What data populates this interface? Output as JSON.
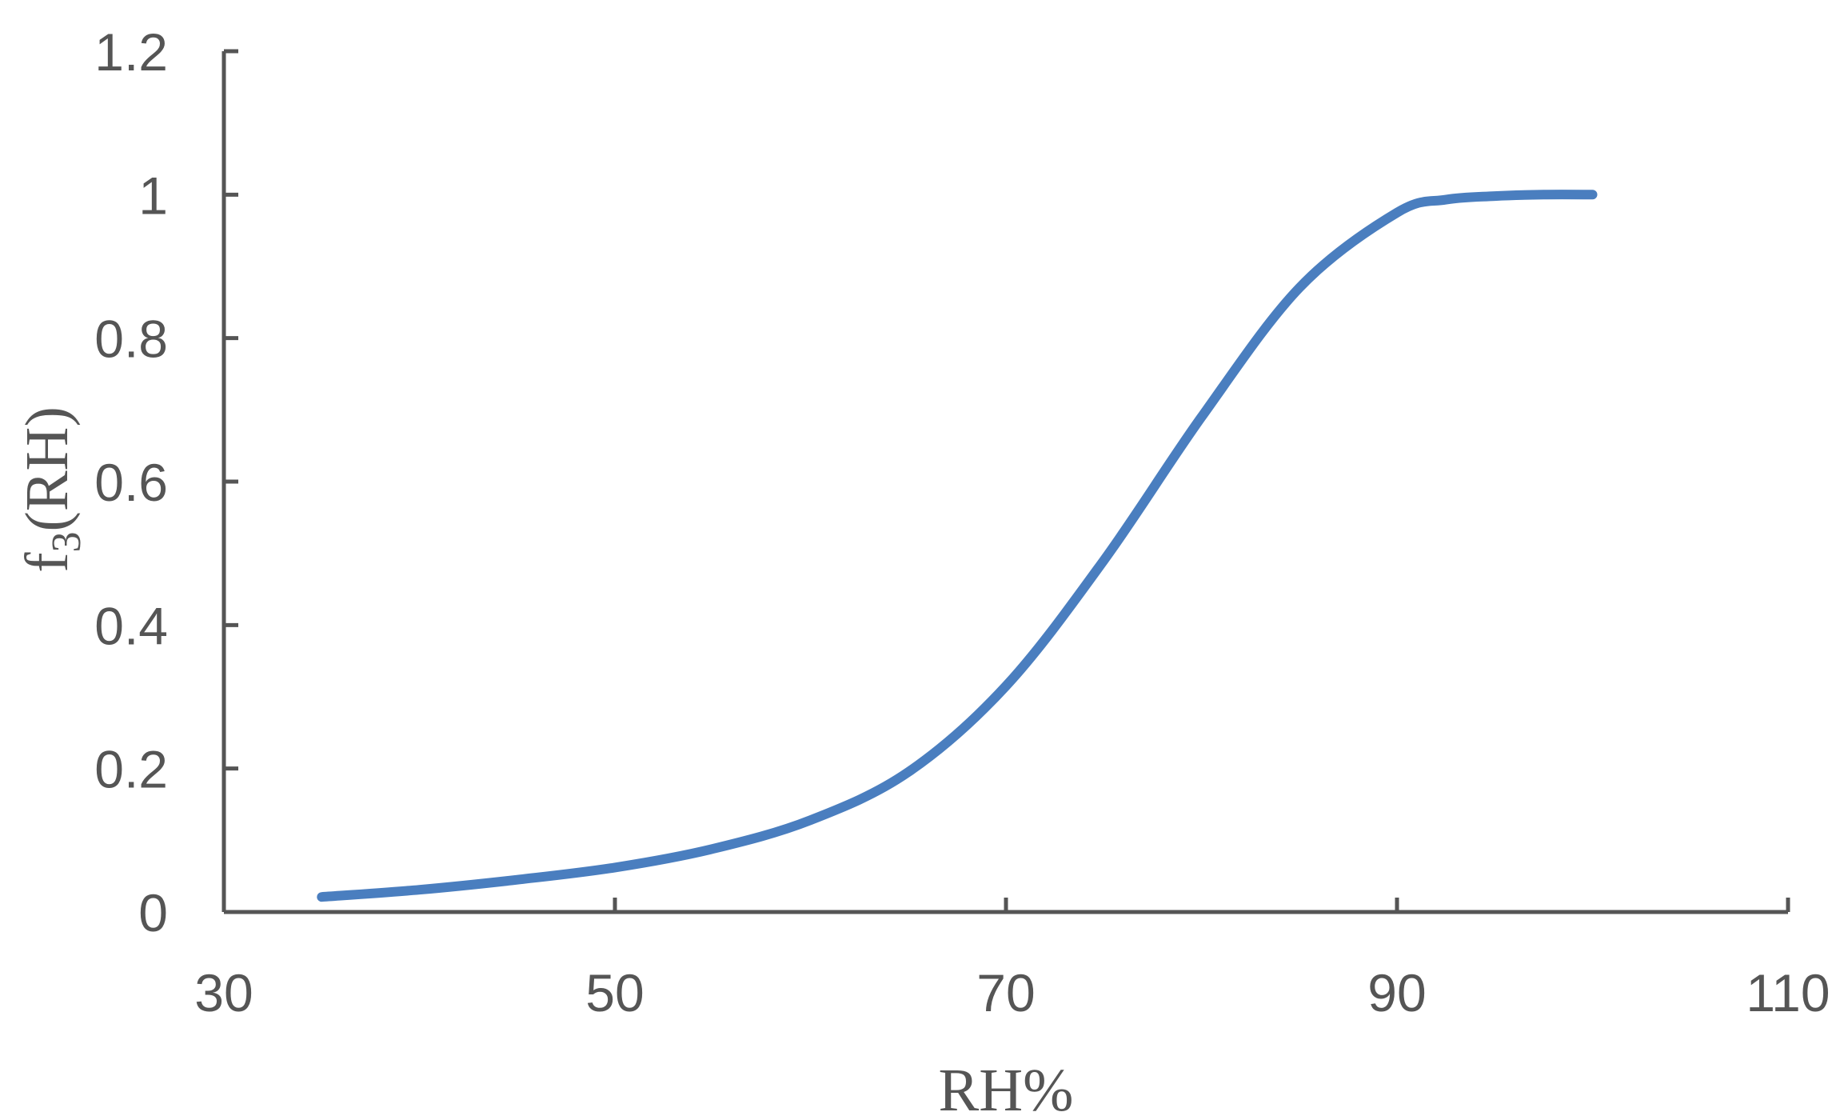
{
  "chart_data": {
    "type": "line",
    "xlabel": "RH%",
    "ylabel": {
      "base": "f",
      "subscript": "3",
      "suffix": "(RH)"
    },
    "xlim": [
      30,
      110
    ],
    "ylim": [
      0,
      1.2
    ],
    "x_ticks": [
      30,
      50,
      70,
      90,
      110
    ],
    "y_ticks": [
      0,
      0.2,
      0.4,
      0.6,
      0.8,
      1,
      1.2
    ],
    "x_tick_labels": [
      "30",
      "50",
      "70",
      "90",
      "110"
    ],
    "y_tick_labels": [
      "0",
      "0.2",
      "0.4",
      "0.6",
      "0.8",
      "1",
      "1.2"
    ],
    "grid": false,
    "legend": "none",
    "line_color": "#4a7ebf",
    "axis_color": "#555555",
    "series": [
      {
        "x": [
          35,
          40,
          45,
          50,
          55,
          60,
          65,
          70,
          75,
          80,
          85,
          90,
          92.5,
          95,
          97.5,
          100
        ],
        "values": [
          0.021,
          0.031,
          0.045,
          0.062,
          0.088,
          0.128,
          0.195,
          0.315,
          0.49,
          0.69,
          0.87,
          0.975,
          0.993,
          0.998,
          1.0,
          1.0
        ]
      }
    ]
  }
}
